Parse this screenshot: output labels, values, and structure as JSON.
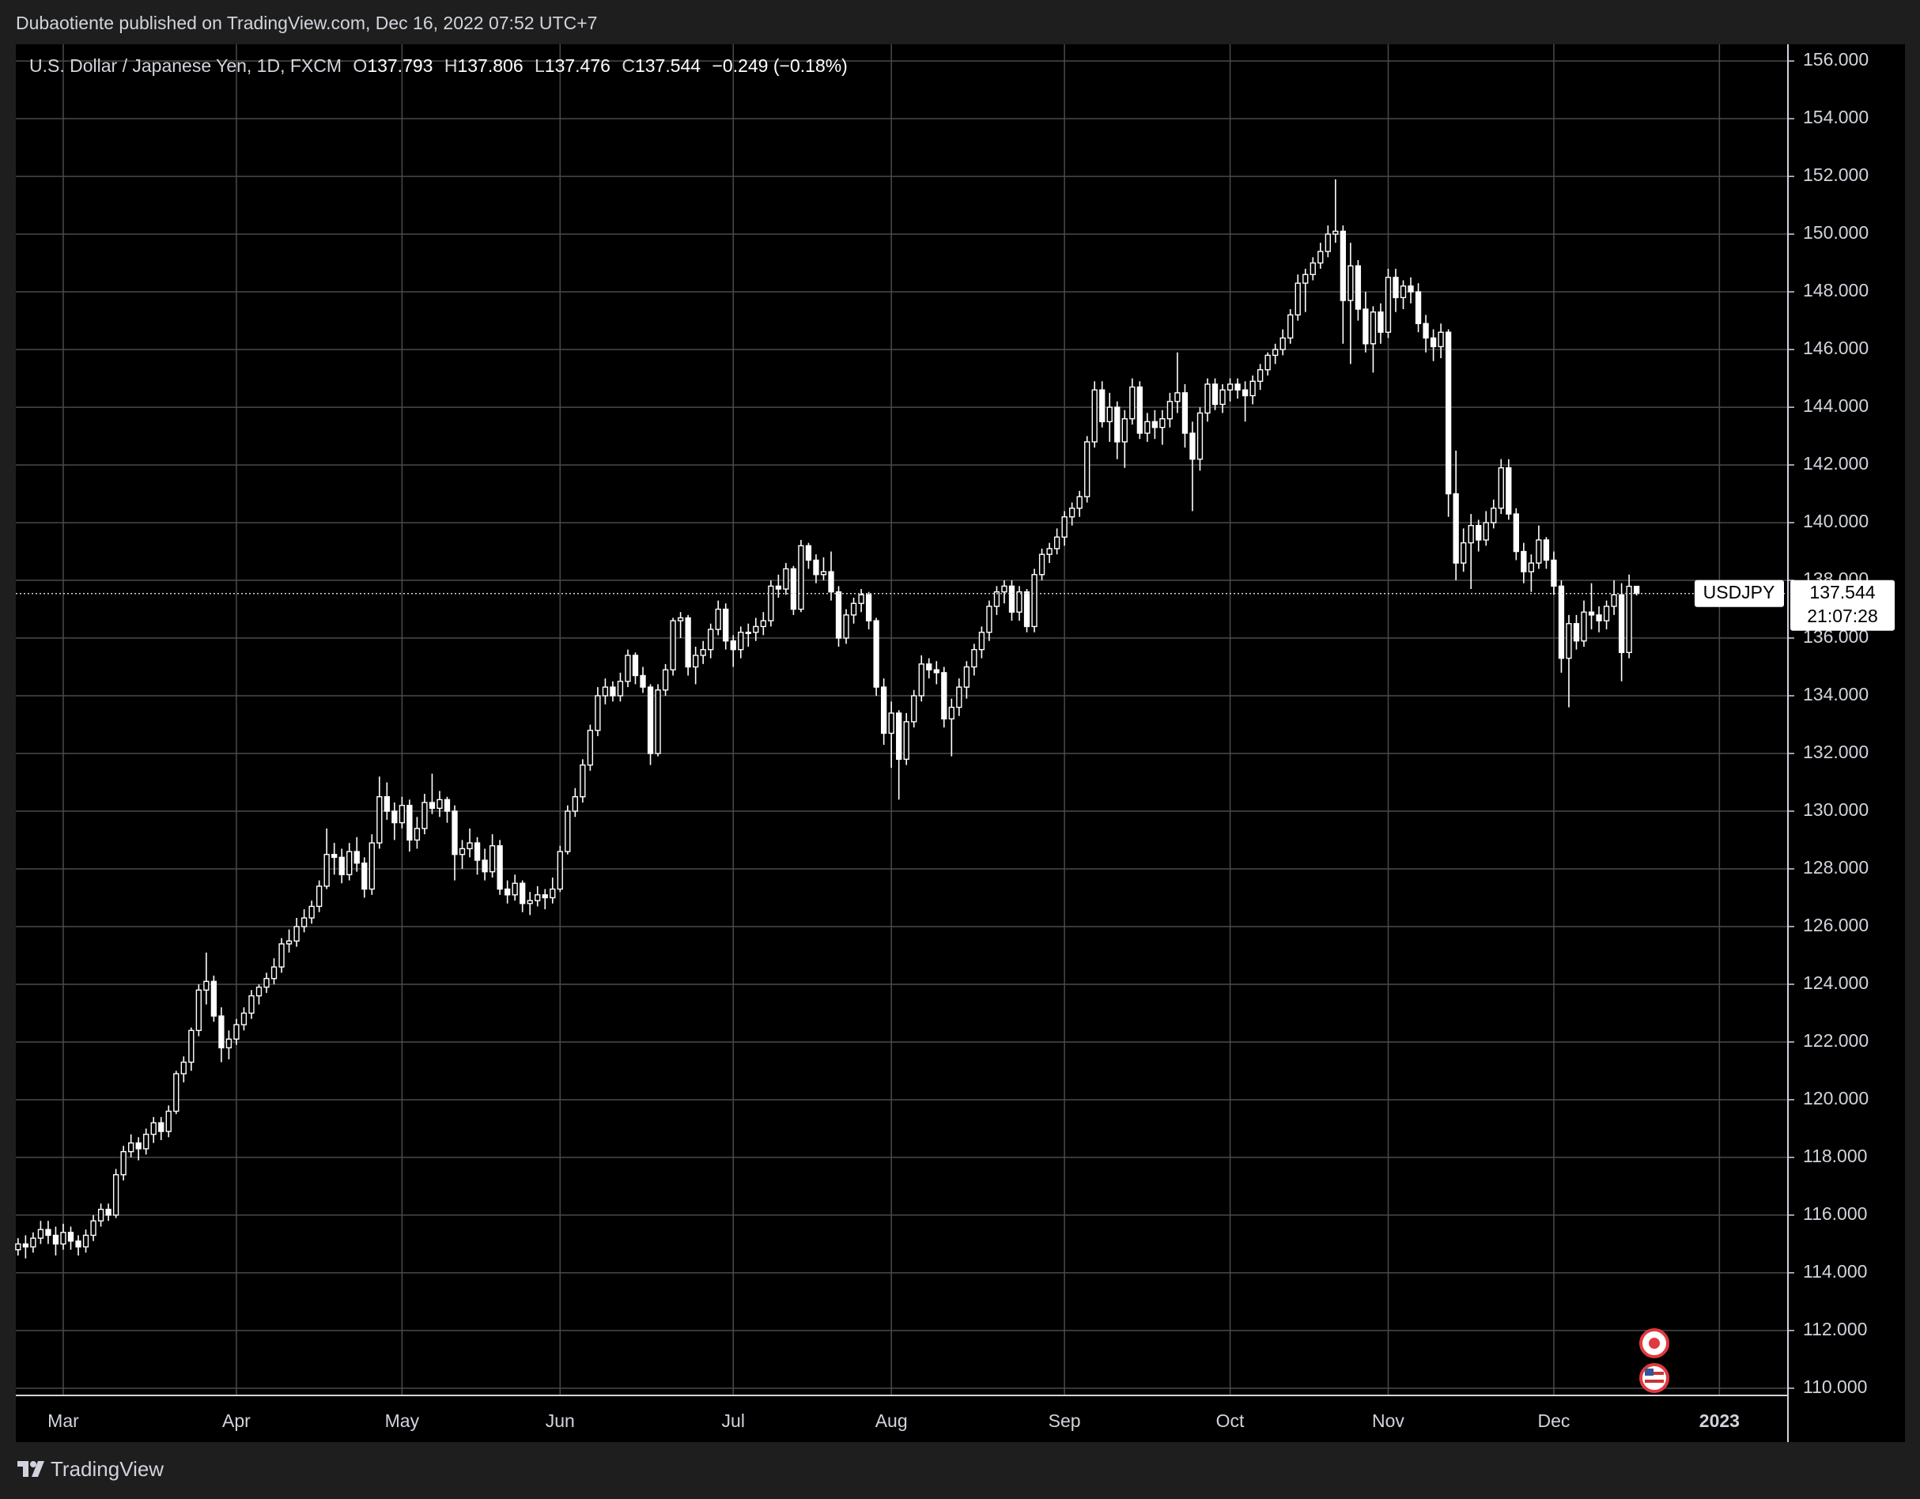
{
  "header": {
    "publisher": "Dubaotiente published on TradingView.com, Dec 16, 2022 07:52 UTC+7"
  },
  "footer": {
    "brand": "TradingView"
  },
  "chart_data": {
    "type": "candlestick",
    "description": "U.S. Dollar / Japanese Yen, 1D, FXCM",
    "ohlc_labels": [
      "O",
      "H",
      "L",
      "C"
    ],
    "change": {
      "value": -0.249,
      "label": "−0.249"
    },
    "change_pct": {
      "value": -0.18,
      "label": "(−0.18%)"
    },
    "symbol": "USDJPY",
    "countdown": "21:07:28",
    "up_color": "#ffffff",
    "down_color": "#ffffff",
    "grid": true,
    "ylim": [
      109.75,
      156.58
    ],
    "yticks": [
      {
        "value": 110,
        "label": "110.000"
      },
      {
        "value": 112,
        "label": "112.000"
      },
      {
        "value": 114,
        "label": "114.000"
      },
      {
        "value": 116,
        "label": "116.000"
      },
      {
        "value": 118,
        "label": "118.000"
      },
      {
        "value": 120,
        "label": "120.000"
      },
      {
        "value": 122,
        "label": "122.000"
      },
      {
        "value": 124,
        "label": "124.000"
      },
      {
        "value": 126,
        "label": "126.000"
      },
      {
        "value": 128,
        "label": "128.000"
      },
      {
        "value": 130,
        "label": "130.000"
      },
      {
        "value": 132,
        "label": "132.000"
      },
      {
        "value": 134,
        "label": "134.000"
      },
      {
        "value": 136,
        "label": "136.000"
      },
      {
        "value": 138,
        "label": "138.000"
      },
      {
        "value": 140,
        "label": "140.000"
      },
      {
        "value": 142,
        "label": "142.000"
      },
      {
        "value": 144,
        "label": "144.000"
      },
      {
        "value": 146,
        "label": "146.000"
      },
      {
        "value": 148,
        "label": "148.000"
      },
      {
        "value": 150,
        "label": "150.000"
      },
      {
        "value": 152,
        "label": "152.000"
      },
      {
        "value": 154,
        "label": "154.000"
      },
      {
        "value": 156,
        "label": "156.000"
      }
    ],
    "xlim": [
      -0.3,
      235.1
    ],
    "xticks": [
      {
        "value": 6,
        "label": "Mar"
      },
      {
        "value": 29,
        "label": "Apr"
      },
      {
        "value": 51,
        "label": "May"
      },
      {
        "value": 72,
        "label": "Jun"
      },
      {
        "value": 95,
        "label": "Jul"
      },
      {
        "value": 116,
        "label": "Aug"
      },
      {
        "value": 139,
        "label": "Sep"
      },
      {
        "value": 161,
        "label": "Oct"
      },
      {
        "value": 182,
        "label": "Nov"
      },
      {
        "value": 204,
        "label": "Dec"
      },
      {
        "value": 226,
        "label": "2023"
      }
    ],
    "ohlc": [
      [
        114.8,
        115.2,
        114.6,
        115.0
      ],
      [
        115.0,
        115.3,
        114.5,
        114.9
      ],
      [
        114.9,
        115.4,
        114.7,
        115.2
      ],
      [
        115.2,
        115.8,
        115.0,
        115.5
      ],
      [
        115.5,
        115.8,
        115.0,
        115.3
      ],
      [
        115.3,
        115.6,
        114.6,
        115.0
      ],
      [
        115.0,
        115.7,
        114.8,
        115.4
      ],
      [
        115.4,
        115.6,
        114.8,
        115.1
      ],
      [
        115.1,
        115.3,
        114.6,
        114.9
      ],
      [
        114.9,
        115.5,
        114.7,
        115.3
      ],
      [
        115.3,
        116.0,
        115.1,
        115.8
      ],
      [
        115.8,
        116.4,
        115.6,
        116.2
      ],
      [
        116.2,
        116.4,
        115.8,
        116.0
      ],
      [
        116.0,
        117.6,
        115.9,
        117.4
      ],
      [
        117.4,
        118.4,
        117.2,
        118.2
      ],
      [
        118.2,
        118.8,
        118.0,
        118.5
      ],
      [
        118.5,
        118.7,
        117.9,
        118.3
      ],
      [
        118.3,
        119.0,
        118.1,
        118.8
      ],
      [
        118.8,
        119.4,
        118.5,
        119.2
      ],
      [
        119.2,
        119.4,
        118.6,
        118.9
      ],
      [
        118.9,
        119.8,
        118.7,
        119.6
      ],
      [
        119.6,
        121.0,
        119.5,
        120.9
      ],
      [
        120.9,
        121.5,
        120.6,
        121.3
      ],
      [
        121.3,
        122.5,
        121.0,
        122.4
      ],
      [
        122.4,
        124.0,
        122.2,
        123.8
      ],
      [
        123.8,
        125.1,
        123.3,
        124.1
      ],
      [
        124.1,
        124.3,
        122.7,
        122.9
      ],
      [
        122.9,
        123.2,
        121.3,
        121.8
      ],
      [
        121.8,
        122.4,
        121.4,
        122.1
      ],
      [
        122.1,
        122.8,
        121.9,
        122.6
      ],
      [
        122.6,
        123.2,
        122.4,
        123.0
      ],
      [
        123.0,
        123.8,
        122.8,
        123.6
      ],
      [
        123.6,
        124.0,
        123.3,
        123.9
      ],
      [
        123.9,
        124.4,
        123.7,
        124.2
      ],
      [
        124.2,
        124.9,
        124.0,
        124.6
      ],
      [
        124.6,
        125.6,
        124.4,
        125.4
      ],
      [
        125.4,
        125.9,
        125.1,
        125.5
      ],
      [
        125.5,
        126.3,
        125.3,
        126.0
      ],
      [
        126.0,
        126.6,
        125.8,
        126.3
      ],
      [
        126.3,
        126.9,
        126.1,
        126.7
      ],
      [
        126.7,
        127.6,
        126.5,
        127.4
      ],
      [
        127.4,
        129.4,
        127.3,
        128.5
      ],
      [
        128.5,
        128.9,
        127.8,
        128.4
      ],
      [
        128.4,
        128.7,
        127.5,
        127.8
      ],
      [
        127.8,
        128.9,
        127.6,
        128.6
      ],
      [
        128.6,
        129.1,
        127.9,
        128.2
      ],
      [
        128.2,
        128.4,
        127.0,
        127.3
      ],
      [
        127.3,
        129.2,
        127.1,
        128.9
      ],
      [
        128.9,
        131.2,
        128.7,
        130.5
      ],
      [
        130.5,
        131.0,
        129.7,
        130.0
      ],
      [
        130.0,
        130.3,
        129.0,
        129.6
      ],
      [
        129.6,
        130.5,
        129.4,
        130.2
      ],
      [
        130.2,
        130.4,
        128.6,
        129.0
      ],
      [
        129.0,
        129.8,
        128.7,
        129.4
      ],
      [
        129.4,
        130.6,
        129.2,
        130.3
      ],
      [
        130.3,
        131.3,
        129.9,
        130.1
      ],
      [
        130.1,
        130.7,
        129.8,
        130.4
      ],
      [
        130.4,
        130.5,
        129.6,
        130.0
      ],
      [
        130.0,
        130.2,
        127.6,
        128.5
      ],
      [
        128.5,
        129.0,
        128.0,
        128.7
      ],
      [
        128.7,
        129.4,
        128.4,
        128.9
      ],
      [
        128.9,
        129.1,
        127.8,
        128.3
      ],
      [
        128.3,
        128.7,
        127.6,
        127.9
      ],
      [
        127.9,
        129.2,
        127.7,
        128.8
      ],
      [
        128.8,
        129.0,
        127.1,
        127.3
      ],
      [
        127.3,
        127.6,
        126.8,
        127.1
      ],
      [
        127.1,
        127.8,
        126.9,
        127.5
      ],
      [
        127.5,
        127.6,
        126.5,
        126.8
      ],
      [
        126.8,
        127.2,
        126.4,
        126.9
      ],
      [
        126.9,
        127.4,
        126.7,
        127.1
      ],
      [
        127.1,
        127.3,
        126.6,
        127.0
      ],
      [
        127.0,
        127.7,
        126.8,
        127.3
      ],
      [
        127.3,
        128.8,
        127.2,
        128.6
      ],
      [
        128.6,
        130.2,
        128.5,
        130.0
      ],
      [
        130.0,
        130.8,
        129.8,
        130.5
      ],
      [
        130.5,
        131.8,
        130.3,
        131.6
      ],
      [
        131.6,
        133.0,
        131.4,
        132.8
      ],
      [
        132.8,
        134.3,
        132.6,
        134.0
      ],
      [
        134.0,
        134.6,
        133.7,
        134.3
      ],
      [
        134.3,
        134.5,
        133.8,
        134.0
      ],
      [
        134.0,
        134.8,
        133.8,
        134.5
      ],
      [
        134.5,
        135.6,
        134.3,
        135.4
      ],
      [
        135.4,
        135.5,
        134.4,
        134.7
      ],
      [
        134.7,
        135.0,
        134.1,
        134.3
      ],
      [
        134.3,
        134.4,
        131.6,
        132.0
      ],
      [
        132.0,
        134.4,
        131.9,
        134.2
      ],
      [
        134.2,
        135.1,
        134.0,
        134.9
      ],
      [
        134.9,
        136.7,
        134.7,
        136.6
      ],
      [
        136.6,
        136.9,
        136.0,
        136.7
      ],
      [
        136.7,
        136.8,
        134.7,
        135.0
      ],
      [
        135.0,
        135.7,
        134.4,
        135.4
      ],
      [
        135.4,
        135.9,
        135.1,
        135.6
      ],
      [
        135.6,
        136.5,
        135.3,
        136.3
      ],
      [
        136.3,
        137.3,
        136.1,
        137.0
      ],
      [
        137.0,
        137.2,
        135.6,
        135.9
      ],
      [
        135.9,
        136.1,
        135.0,
        135.6
      ],
      [
        135.6,
        136.4,
        135.3,
        136.2
      ],
      [
        136.2,
        136.5,
        135.7,
        136.2
      ],
      [
        136.2,
        136.7,
        135.9,
        136.4
      ],
      [
        136.4,
        136.9,
        136.1,
        136.6
      ],
      [
        136.6,
        138.0,
        136.4,
        137.8
      ],
      [
        137.8,
        138.2,
        137.4,
        137.7
      ],
      [
        137.7,
        138.6,
        137.5,
        138.4
      ],
      [
        138.4,
        138.5,
        136.8,
        137.0
      ],
      [
        137.0,
        139.4,
        136.9,
        139.2
      ],
      [
        139.2,
        139.3,
        138.4,
        138.7
      ],
      [
        138.7,
        138.9,
        137.9,
        138.2
      ],
      [
        138.2,
        138.8,
        138.0,
        138.3
      ],
      [
        138.3,
        139.0,
        137.3,
        137.6
      ],
      [
        137.6,
        137.8,
        135.7,
        136.0
      ],
      [
        136.0,
        137.0,
        135.8,
        136.8
      ],
      [
        136.8,
        137.4,
        136.5,
        137.2
      ],
      [
        137.2,
        137.7,
        136.9,
        137.5
      ],
      [
        137.5,
        137.6,
        136.3,
        136.6
      ],
      [
        136.6,
        136.7,
        134.0,
        134.3
      ],
      [
        134.3,
        134.6,
        132.3,
        132.7
      ],
      [
        132.7,
        133.8,
        131.5,
        133.4
      ],
      [
        133.4,
        133.5,
        130.4,
        131.8
      ],
      [
        131.8,
        133.4,
        131.6,
        133.1
      ],
      [
        133.1,
        134.2,
        132.9,
        134.0
      ],
      [
        134.0,
        135.4,
        133.8,
        135.1
      ],
      [
        135.1,
        135.3,
        134.6,
        134.9
      ],
      [
        134.9,
        135.2,
        134.4,
        134.8
      ],
      [
        134.8,
        135.0,
        132.9,
        133.2
      ],
      [
        133.2,
        133.9,
        131.9,
        133.6
      ],
      [
        133.6,
        134.6,
        133.3,
        134.3
      ],
      [
        134.3,
        135.2,
        133.9,
        135.0
      ],
      [
        135.0,
        135.8,
        134.7,
        135.6
      ],
      [
        135.6,
        136.4,
        135.3,
        136.2
      ],
      [
        136.2,
        137.3,
        135.9,
        137.1
      ],
      [
        137.1,
        137.8,
        136.8,
        137.6
      ],
      [
        137.6,
        138.0,
        137.2,
        137.8
      ],
      [
        137.8,
        138.0,
        136.6,
        136.9
      ],
      [
        136.9,
        137.8,
        136.6,
        137.6
      ],
      [
        137.6,
        137.7,
        136.2,
        136.4
      ],
      [
        136.4,
        138.4,
        136.2,
        138.2
      ],
      [
        138.2,
        139.1,
        138.0,
        138.9
      ],
      [
        138.9,
        139.3,
        138.6,
        139.1
      ],
      [
        139.1,
        139.8,
        138.9,
        139.5
      ],
      [
        139.5,
        140.4,
        139.2,
        140.2
      ],
      [
        140.2,
        140.7,
        139.9,
        140.5
      ],
      [
        140.5,
        141.1,
        140.2,
        140.9
      ],
      [
        140.9,
        143.0,
        140.7,
        142.8
      ],
      [
        142.8,
        144.9,
        142.6,
        144.6
      ],
      [
        144.6,
        144.9,
        143.3,
        143.5
      ],
      [
        143.5,
        144.5,
        142.8,
        144.0
      ],
      [
        144.0,
        144.2,
        142.2,
        142.8
      ],
      [
        142.8,
        143.9,
        141.9,
        143.6
      ],
      [
        143.6,
        145.0,
        143.4,
        144.7
      ],
      [
        144.7,
        144.9,
        142.9,
        143.1
      ],
      [
        143.1,
        143.8,
        142.8,
        143.5
      ],
      [
        143.5,
        143.9,
        142.9,
        143.3
      ],
      [
        143.3,
        143.9,
        142.7,
        143.6
      ],
      [
        143.6,
        144.5,
        143.3,
        144.2
      ],
      [
        144.2,
        145.9,
        143.8,
        144.5
      ],
      [
        144.5,
        144.8,
        142.6,
        143.1
      ],
      [
        143.1,
        143.5,
        140.4,
        142.2
      ],
      [
        142.2,
        144.0,
        141.8,
        143.8
      ],
      [
        143.8,
        145.0,
        143.5,
        144.8
      ],
      [
        144.8,
        145.0,
        143.9,
        144.1
      ],
      [
        144.1,
        144.8,
        143.8,
        144.6
      ],
      [
        144.6,
        145.0,
        144.2,
        144.8
      ],
      [
        144.8,
        145.0,
        144.3,
        144.6
      ],
      [
        144.6,
        144.9,
        143.5,
        144.4
      ],
      [
        144.4,
        145.1,
        144.1,
        144.9
      ],
      [
        144.9,
        145.5,
        144.6,
        145.3
      ],
      [
        145.3,
        145.9,
        145.1,
        145.8
      ],
      [
        145.8,
        146.2,
        145.5,
        146.0
      ],
      [
        146.0,
        146.7,
        145.8,
        146.4
      ],
      [
        146.4,
        147.4,
        146.2,
        147.2
      ],
      [
        147.2,
        148.6,
        147.0,
        148.3
      ],
      [
        148.3,
        148.8,
        147.3,
        148.6
      ],
      [
        148.6,
        149.2,
        148.4,
        149.0
      ],
      [
        149.0,
        149.7,
        148.8,
        149.4
      ],
      [
        149.4,
        150.3,
        149.2,
        150.0
      ],
      [
        150.0,
        151.9,
        149.7,
        150.1
      ],
      [
        150.1,
        150.3,
        146.2,
        147.7
      ],
      [
        147.7,
        149.7,
        145.5,
        148.9
      ],
      [
        148.9,
        149.1,
        147.0,
        147.4
      ],
      [
        147.4,
        148.0,
        145.9,
        146.2
      ],
      [
        146.2,
        147.5,
        145.2,
        147.3
      ],
      [
        147.3,
        147.6,
        146.2,
        146.6
      ],
      [
        146.6,
        148.8,
        146.4,
        148.5
      ],
      [
        148.5,
        148.8,
        147.3,
        147.8
      ],
      [
        147.8,
        148.4,
        147.4,
        148.2
      ],
      [
        148.2,
        148.5,
        147.6,
        148.0
      ],
      [
        148.0,
        148.3,
        146.6,
        146.9
      ],
      [
        146.9,
        147.2,
        145.9,
        146.4
      ],
      [
        146.4,
        146.7,
        145.6,
        146.1
      ],
      [
        146.1,
        146.9,
        145.7,
        146.6
      ],
      [
        146.6,
        146.7,
        140.2,
        141.0
      ],
      [
        141.0,
        142.5,
        138.0,
        138.6
      ],
      [
        138.6,
        139.8,
        138.3,
        139.3
      ],
      [
        139.3,
        140.3,
        137.7,
        139.9
      ],
      [
        139.9,
        140.1,
        139.0,
        139.4
      ],
      [
        139.4,
        140.4,
        139.2,
        140.0
      ],
      [
        140.0,
        140.8,
        139.8,
        140.5
      ],
      [
        140.5,
        142.2,
        140.3,
        141.9
      ],
      [
        141.9,
        142.2,
        140.1,
        140.3
      ],
      [
        140.3,
        140.5,
        138.7,
        139.0
      ],
      [
        139.0,
        139.3,
        137.9,
        138.3
      ],
      [
        138.3,
        138.9,
        137.6,
        138.6
      ],
      [
        138.6,
        139.9,
        138.4,
        139.4
      ],
      [
        139.4,
        139.5,
        138.4,
        138.7
      ],
      [
        138.7,
        139.0,
        137.5,
        137.8
      ],
      [
        137.8,
        138.0,
        134.8,
        135.3
      ],
      [
        135.3,
        136.8,
        133.6,
        136.5
      ],
      [
        136.5,
        136.8,
        135.6,
        135.9
      ],
      [
        135.9,
        137.3,
        135.7,
        136.9
      ],
      [
        136.9,
        137.9,
        136.3,
        136.8
      ],
      [
        136.8,
        137.1,
        136.2,
        136.6
      ],
      [
        136.6,
        137.3,
        136.3,
        137.1
      ],
      [
        137.1,
        138.0,
        136.8,
        137.5
      ],
      [
        137.5,
        137.9,
        134.5,
        135.5
      ],
      [
        135.5,
        138.2,
        135.3,
        137.793
      ],
      [
        137.793,
        137.806,
        137.476,
        137.544
      ]
    ]
  }
}
